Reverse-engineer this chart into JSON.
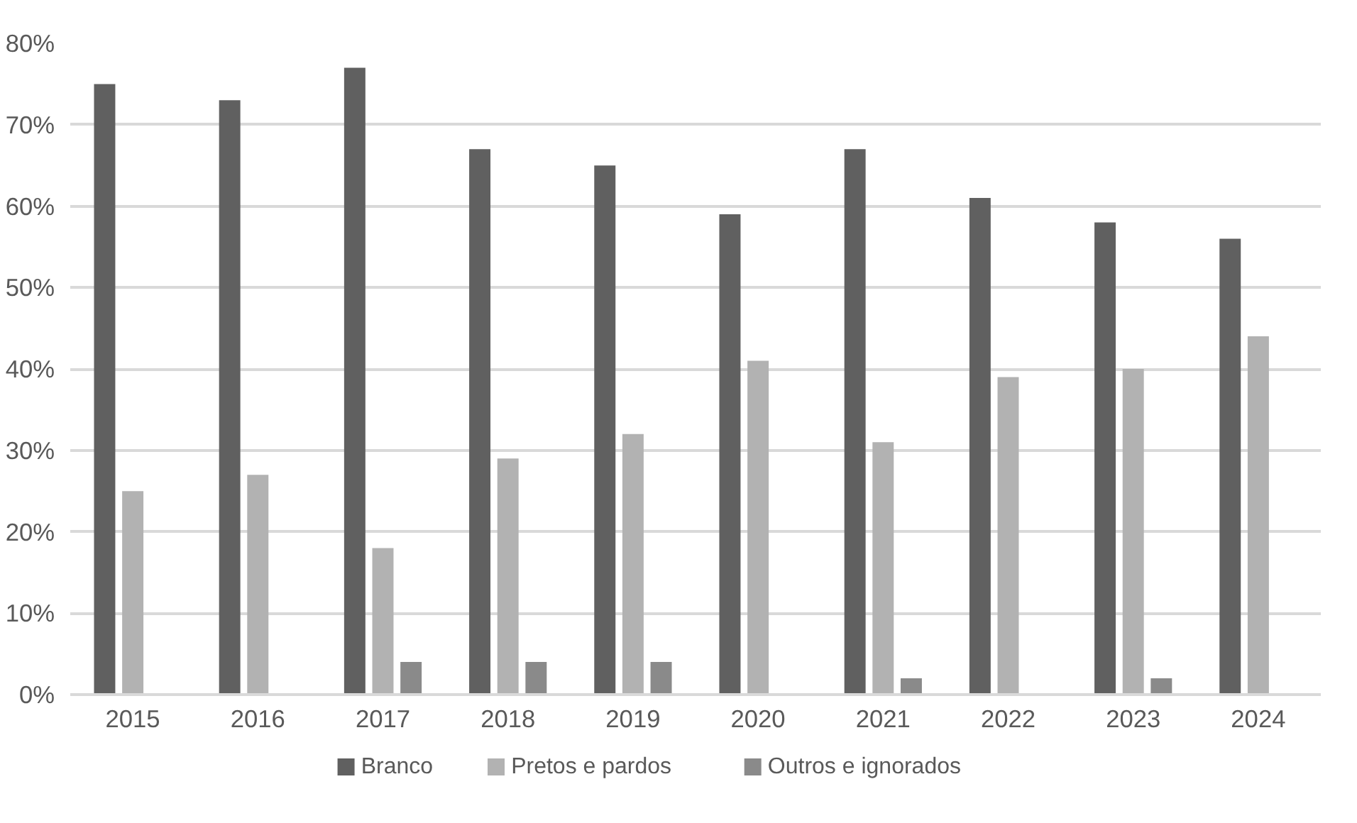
{
  "chart_data": {
    "type": "bar",
    "categories": [
      "2015",
      "2016",
      "2017",
      "2018",
      "2019",
      "2020",
      "2021",
      "2022",
      "2023",
      "2024"
    ],
    "series": [
      {
        "name": "Branco",
        "color": "#606060",
        "values": [
          75,
          73,
          77,
          67,
          65,
          59,
          67,
          61,
          58,
          56
        ]
      },
      {
        "name": "Pretos e pardos",
        "color": "#b2b2b2",
        "values": [
          25,
          27,
          18,
          29,
          32,
          41,
          31,
          39,
          40,
          44
        ]
      },
      {
        "name": "Outros e ignorados",
        "color": "#8a8a8a",
        "values": [
          0,
          0,
          4,
          4,
          4,
          0,
          2,
          0,
          2,
          0
        ]
      }
    ],
    "ylim": [
      0,
      80
    ],
    "yticks": [
      {
        "value": 0,
        "label": "0%"
      },
      {
        "value": 10,
        "label": "10%"
      },
      {
        "value": 20,
        "label": "20%"
      },
      {
        "value": 30,
        "label": "30%"
      },
      {
        "value": 40,
        "label": "40%"
      },
      {
        "value": 50,
        "label": "50%"
      },
      {
        "value": 60,
        "label": "60%"
      },
      {
        "value": 70,
        "label": "70%"
      },
      {
        "value": 80,
        "label": "80%"
      }
    ],
    "grid": "y",
    "legend": "bottom"
  }
}
